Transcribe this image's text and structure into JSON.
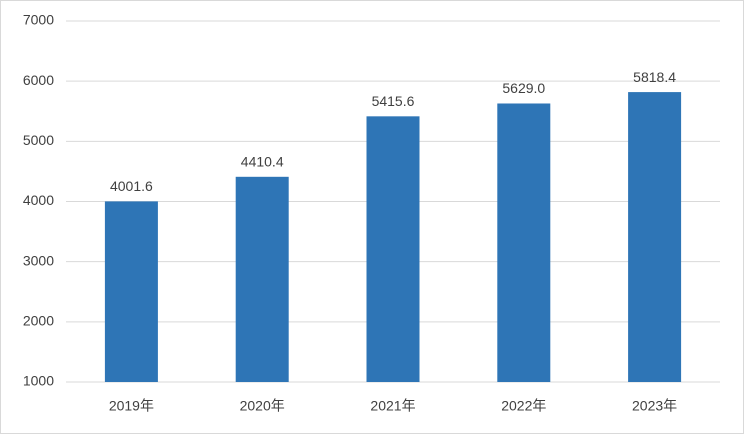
{
  "chart_data": {
    "type": "bar",
    "categories": [
      "2019年",
      "2020年",
      "2021年",
      "2022年",
      "2023年"
    ],
    "values": [
      4001.6,
      4410.4,
      5415.6,
      5629.0,
      5818.4
    ],
    "value_labels": [
      "4001.6",
      "4410.4",
      "5415.6",
      "5629.0",
      "5818.4"
    ],
    "color": "#2e75b6",
    "ylim": [
      1000,
      7000
    ],
    "yticks": [
      1000,
      2000,
      3000,
      4000,
      5000,
      6000,
      7000
    ],
    "grid": true
  }
}
